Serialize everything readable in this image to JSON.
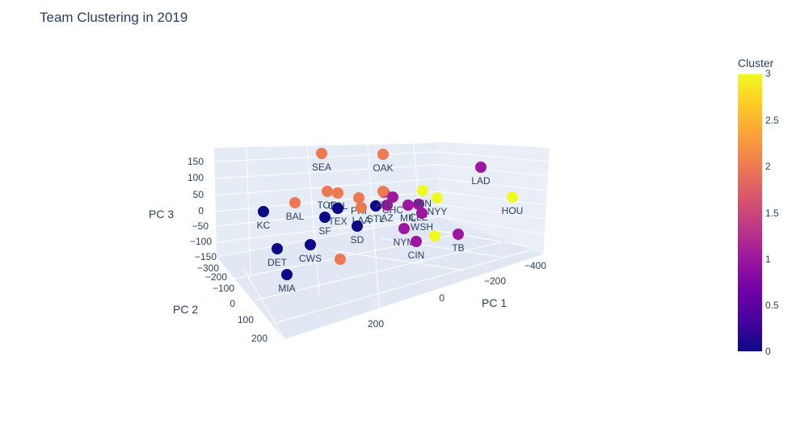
{
  "chart_data": {
    "type": "scatter",
    "title": "Team Clustering in 2019",
    "axes": {
      "x": {
        "label": "PC 1",
        "ticks": [
          "−400",
          "−200",
          "0",
          "200"
        ]
      },
      "y": {
        "label": "PC 2",
        "ticks": [
          "−300",
          "−200",
          "−100",
          "0",
          "100",
          "200"
        ]
      },
      "z": {
        "label": "PC 3",
        "ticks": [
          "150",
          "100",
          "50",
          "0",
          "−50",
          "−100",
          "−150"
        ]
      }
    },
    "colorbar": {
      "title": "Cluster",
      "ticks": [
        "3",
        "2.5",
        "2",
        "1.5",
        "1",
        "0.5",
        "0"
      ],
      "range": [
        0,
        3
      ],
      "colors": [
        "#0d0887",
        "#46039f",
        "#7201a8",
        "#9c179e",
        "#bd3786",
        "#d8576b",
        "#ed7953",
        "#fb9f3a",
        "#fdca26",
        "#f0f921"
      ]
    },
    "points": [
      {
        "team": "SEA",
        "cluster": 2
      },
      {
        "team": "OAK",
        "cluster": 2
      },
      {
        "team": "LAD",
        "cluster": 1
      },
      {
        "team": "HOU",
        "cluster": 3
      },
      {
        "team": "BAL",
        "cluster": 2
      },
      {
        "team": "TOR",
        "cluster": 2
      },
      {
        "team": "COL",
        "cluster": 2
      },
      {
        "team": "PHI",
        "cluster": 2
      },
      {
        "team": "LAA",
        "cluster": 2
      },
      {
        "team": "TEX",
        "cluster": 0
      },
      {
        "team": "STL",
        "cluster": 0
      },
      {
        "team": "CHC",
        "cluster": 1
      },
      {
        "team": "AZ",
        "cluster": 1
      },
      {
        "team": "MIL",
        "cluster": 1
      },
      {
        "team": "CLE",
        "cluster": 1
      },
      {
        "team": "MIN",
        "cluster": 3
      },
      {
        "team": "NYY",
        "cluster": 3
      },
      {
        "team": "WSH",
        "cluster": 1
      },
      {
        "team": "ATL",
        "cluster": 1
      },
      {
        "team": "KC",
        "cluster": 0
      },
      {
        "team": "SF",
        "cluster": 0
      },
      {
        "team": "SD",
        "cluster": 0
      },
      {
        "team": "DET",
        "cluster": 0
      },
      {
        "team": "CWS",
        "cluster": 0
      },
      {
        "team": "MIA",
        "cluster": 0
      },
      {
        "team": "NYM",
        "cluster": 1
      },
      {
        "team": "CIN",
        "cluster": 1
      },
      {
        "team": "TB",
        "cluster": 1
      },
      {
        "team": "",
        "cluster": 3
      },
      {
        "team": "",
        "cluster": 2
      },
      {
        "team": "",
        "cluster": 2
      }
    ]
  }
}
